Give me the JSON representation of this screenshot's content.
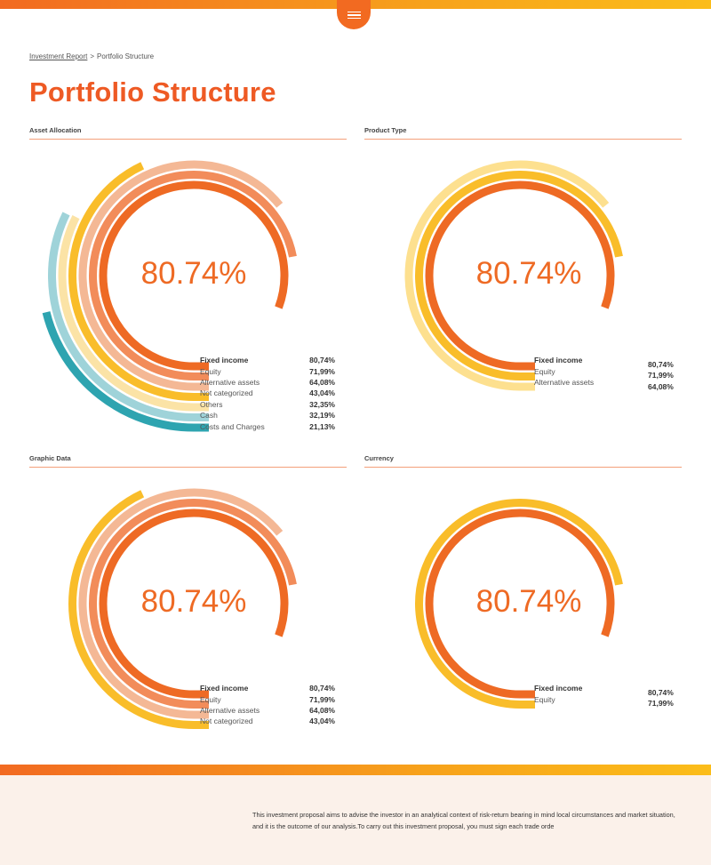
{
  "header": {
    "menu_icon": "hamburger-icon"
  },
  "breadcrumb": {
    "parent": "Investment Report",
    "separator": ">",
    "current": "Portfolio Structure"
  },
  "page": {
    "title": "Portfolio Structure"
  },
  "colors": {
    "accent": "#ee5a24",
    "fixed_income": "#ee6a24",
    "equity": "#f28c5a",
    "alternative": "#f4b895",
    "not_categorized": "#f9bd2a",
    "product_alt": "#fde08f",
    "others": "#fbe3a6",
    "cash": "#9fd3d9",
    "costs": "#2ea4b0"
  },
  "panels": [
    {
      "title": "Asset Allocation",
      "center_value": "80.74%",
      "rows": [
        {
          "label": "Fixed income",
          "value": "80,74%"
        },
        {
          "label": "Equity",
          "value": "71,99%"
        },
        {
          "label": "Alternative assets",
          "value": "64,08%"
        },
        {
          "label": "Not categorized",
          "value": "43,04%"
        },
        {
          "label": "Others",
          "value": "32,35%"
        },
        {
          "label": "Cash",
          "value": "32,19%"
        },
        {
          "label": "Costs and Charges",
          "value": "21,13%"
        }
      ]
    },
    {
      "title": "Product Type",
      "center_value": "80.74%",
      "rows": [
        {
          "label": "Fixed income",
          "value": "80,74%"
        },
        {
          "label": "Equity",
          "value": "71,99%"
        },
        {
          "label": "Alternative assets",
          "value": "64,08%"
        }
      ]
    },
    {
      "title": "Graphic Data",
      "center_value": "80.74%",
      "rows": [
        {
          "label": "Fixed income",
          "value": "80,74%"
        },
        {
          "label": "Equity",
          "value": "71,99%"
        },
        {
          "label": "Alternative assets",
          "value": "64,08%"
        },
        {
          "label": "Not categorized",
          "value": "43,04%"
        }
      ]
    },
    {
      "title": "Currency",
      "center_value": "80.74%",
      "rows": [
        {
          "label": "Fixed income",
          "value": "80,74%"
        },
        {
          "label": "Equity",
          "value": "71,99%"
        }
      ]
    }
  ],
  "footer": {
    "text": "This investment proposal aims to advise the investor in an analytical context of risk-return bearing in mind local circumstances and market situation, and it is the outcome of our analysis.To carry out this investment proposal, you must sign each trade orde"
  }
}
